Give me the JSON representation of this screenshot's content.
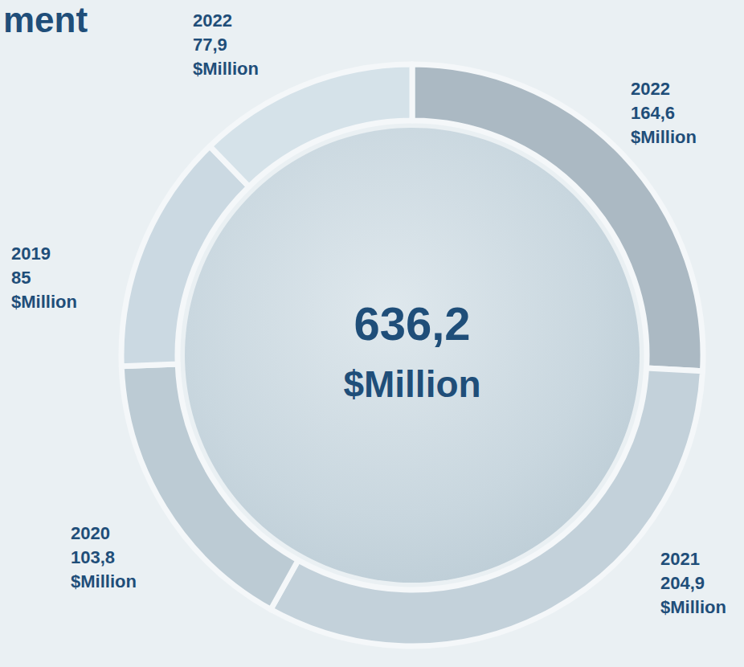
{
  "chart_data": {
    "type": "pie",
    "title": "ment",
    "categories": [
      "2022",
      "2021",
      "2020",
      "2019",
      "2022"
    ],
    "values": [
      164.6,
      204.9,
      103.8,
      85,
      77.9
    ],
    "value_labels": [
      "164,6",
      "204,9",
      "103,8",
      "85",
      "77,9"
    ],
    "unit": "$Million",
    "center_label": "636,2",
    "colors": [
      "#abb9c3",
      "#c3d1da",
      "#bccbd4",
      "#cbd9e2",
      "#d5e2e9"
    ],
    "data_labels": true
  }
}
